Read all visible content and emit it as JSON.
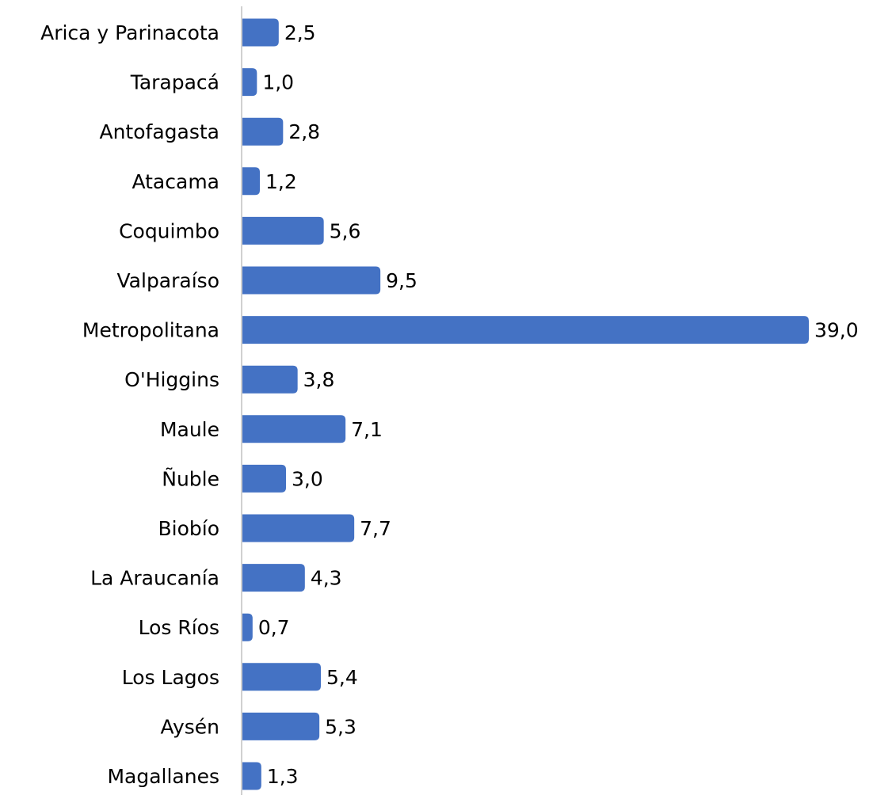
{
  "chart_data": {
    "type": "hbar",
    "categories": [
      "Arica y Parinacota",
      "Tarapacá",
      "Antofagasta",
      "Atacama",
      "Coquimbo",
      "Valparaíso",
      "Metropolitana",
      "O'Higgins",
      "Maule",
      "Ñuble",
      "Biobío",
      "La Araucanía",
      "Los Ríos",
      "Los Lagos",
      "Aysén",
      "Magallanes"
    ],
    "values": [
      2.5,
      1.0,
      2.8,
      1.2,
      5.6,
      9.5,
      39.0,
      3.8,
      7.1,
      3.0,
      7.7,
      4.3,
      0.7,
      5.4,
      5.3,
      1.3
    ],
    "value_labels": [
      "2,5",
      "1,0",
      "2,8",
      "1,2",
      "5,6",
      "9,5",
      "39,0",
      "3,8",
      "7,1",
      "3,0",
      "7,7",
      "4,3",
      "0,7",
      "5,4",
      "5,3",
      "1,3"
    ],
    "color": "#4472c4",
    "xlim": [
      0,
      39
    ]
  }
}
